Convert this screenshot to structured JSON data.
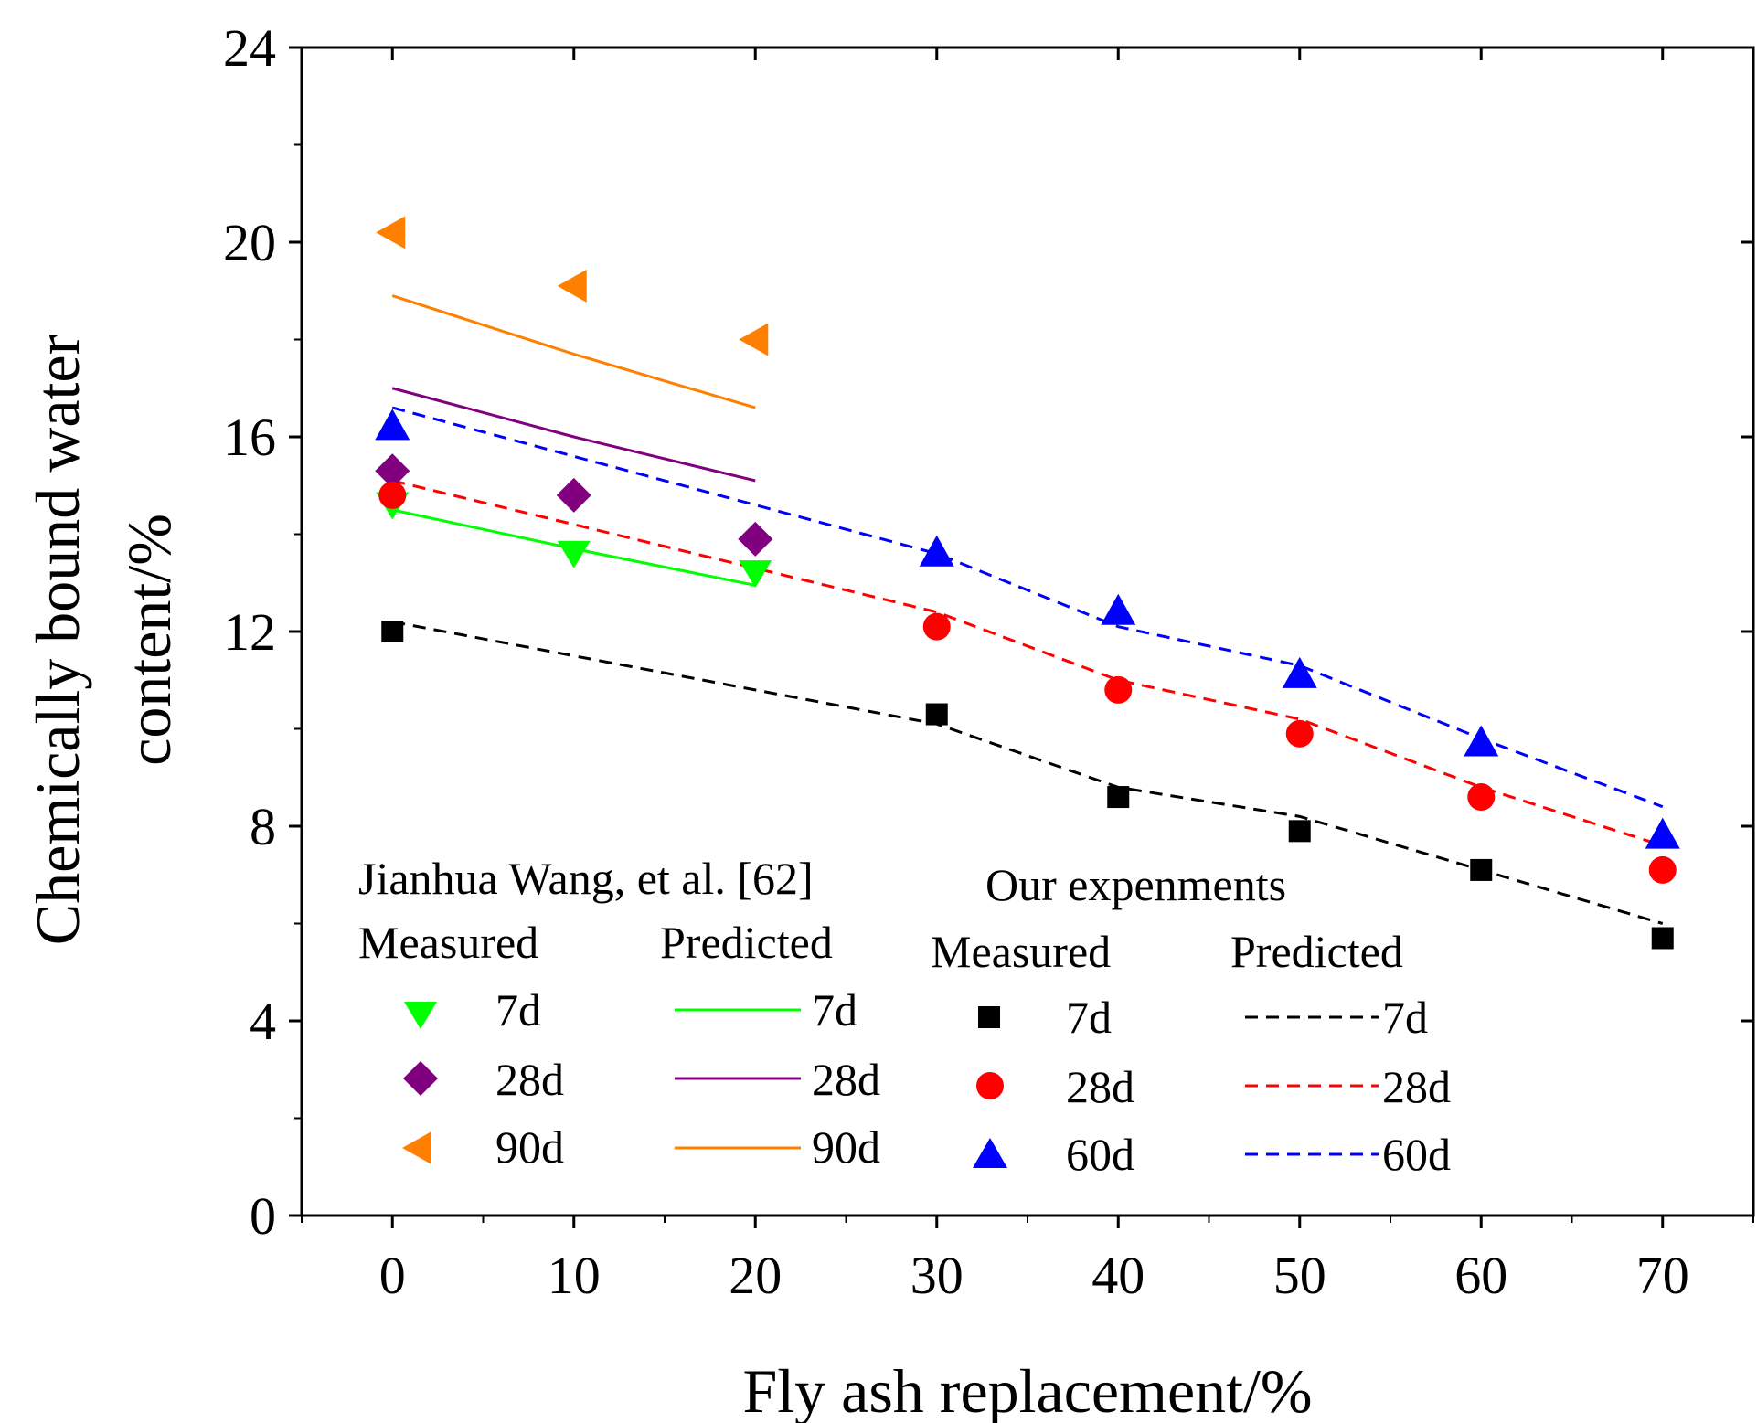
{
  "chart_data": {
    "type": "line",
    "title": "",
    "xlabel": "Fly ash replacement/%",
    "ylabel_line1": "Chemically bound water",
    "ylabel_line2": "content/%",
    "xlim": [
      -5,
      75
    ],
    "ylim": [
      0,
      24
    ],
    "xticks": [
      0,
      10,
      20,
      30,
      40,
      50,
      60,
      70
    ],
    "yticks": [
      0,
      4,
      8,
      12,
      16,
      20,
      24
    ],
    "xtick_labels": [
      "0",
      "10",
      "20",
      "30",
      "40",
      "50",
      "60",
      "70"
    ],
    "ytick_labels": [
      "0",
      "4",
      "8",
      "12",
      "16",
      "20",
      "24"
    ],
    "series": [
      {
        "id": "wang-meas-7d",
        "name": "7d",
        "group": "Jianhua Wang, et al. [62]",
        "kind": "Measured",
        "marker": "triangle-down",
        "color": "#00ff00",
        "x": [
          0,
          10,
          20
        ],
        "y": [
          14.6,
          13.6,
          13.2
        ]
      },
      {
        "id": "wang-meas-28d",
        "name": "28d",
        "group": "Jianhua Wang, et al. [62]",
        "kind": "Measured",
        "marker": "diamond",
        "color": "#800080",
        "x": [
          0,
          10,
          20
        ],
        "y": [
          15.3,
          14.8,
          13.9
        ]
      },
      {
        "id": "wang-meas-90d",
        "name": "90d",
        "group": "Jianhua Wang, et al. [62]",
        "kind": "Measured",
        "marker": "triangle-left",
        "color": "#ff8000",
        "x": [
          0,
          10,
          20
        ],
        "y": [
          20.2,
          19.1,
          18.0
        ]
      },
      {
        "id": "wang-pred-7d",
        "name": "7d",
        "group": "Jianhua Wang, et al. [62]",
        "kind": "Predicted",
        "line": "solid",
        "color": "#00ff00",
        "x": [
          0,
          10,
          20
        ],
        "y": [
          14.5,
          13.7,
          12.95
        ]
      },
      {
        "id": "wang-pred-28d",
        "name": "28d",
        "group": "Jianhua Wang, et al. [62]",
        "kind": "Predicted",
        "line": "solid",
        "color": "#800080",
        "x": [
          0,
          10,
          20
        ],
        "y": [
          17.0,
          16.0,
          15.1
        ]
      },
      {
        "id": "wang-pred-90d",
        "name": "90d",
        "group": "Jianhua Wang, et al. [62]",
        "kind": "Predicted",
        "line": "solid",
        "color": "#ff8000",
        "x": [
          0,
          10,
          20
        ],
        "y": [
          18.9,
          17.7,
          16.6
        ]
      },
      {
        "id": "our-meas-7d",
        "name": "7d",
        "group": "Our expenments",
        "kind": "Measured",
        "marker": "square",
        "color": "#000000",
        "x": [
          0,
          30,
          40,
          50,
          60,
          70
        ],
        "y": [
          12.0,
          10.3,
          8.6,
          7.9,
          7.1,
          5.7
        ]
      },
      {
        "id": "our-meas-28d",
        "name": "28d",
        "group": "Our expenments",
        "kind": "Measured",
        "marker": "circle",
        "color": "#ff0000",
        "x": [
          0,
          30,
          40,
          50,
          60,
          70
        ],
        "y": [
          14.8,
          12.1,
          10.8,
          9.9,
          8.6,
          7.1
        ]
      },
      {
        "id": "our-meas-60d",
        "name": "60d",
        "group": "Our expenments",
        "kind": "Measured",
        "marker": "triangle-up",
        "color": "#0000ff",
        "x": [
          0,
          30,
          40,
          50,
          60,
          70
        ],
        "y": [
          16.2,
          13.6,
          12.4,
          11.1,
          9.7,
          7.8
        ]
      },
      {
        "id": "our-pred-7d",
        "name": "7d",
        "group": "Our expenments",
        "kind": "Predicted",
        "line": "dashed",
        "color": "#000000",
        "x": [
          0,
          30,
          40,
          50,
          60,
          70
        ],
        "y": [
          12.2,
          10.1,
          8.8,
          8.2,
          7.1,
          6.0
        ]
      },
      {
        "id": "our-pred-28d",
        "name": "28d",
        "group": "Our expenments",
        "kind": "Predicted",
        "line": "dashed",
        "color": "#ff0000",
        "x": [
          0,
          30,
          40,
          50,
          60,
          70
        ],
        "y": [
          15.1,
          12.4,
          11.0,
          10.2,
          8.8,
          7.6
        ]
      },
      {
        "id": "our-pred-60d",
        "name": "60d",
        "group": "Our expenments",
        "kind": "Predicted",
        "line": "dashed",
        "color": "#0000ff",
        "x": [
          0,
          30,
          40,
          50,
          60,
          70
        ],
        "y": [
          16.6,
          13.6,
          12.1,
          11.3,
          9.8,
          8.4
        ]
      }
    ],
    "legend": {
      "placement": "bottom-center",
      "left_group": {
        "title": "Jianhua Wang, et al. [62]",
        "measured_header": "Measured",
        "predicted_header": "Predicted",
        "measured_labels": [
          "7d",
          "28d",
          "90d"
        ],
        "predicted_labels": [
          "7d",
          "28d",
          "90d"
        ]
      },
      "right_group": {
        "title": "Our expenments",
        "measured_header": "Measured",
        "predicted_header": "Predicted",
        "measured_labels": [
          "7d",
          "28d",
          "60d"
        ],
        "predicted_labels": [
          "7d",
          "28d",
          "60d"
        ]
      }
    }
  }
}
